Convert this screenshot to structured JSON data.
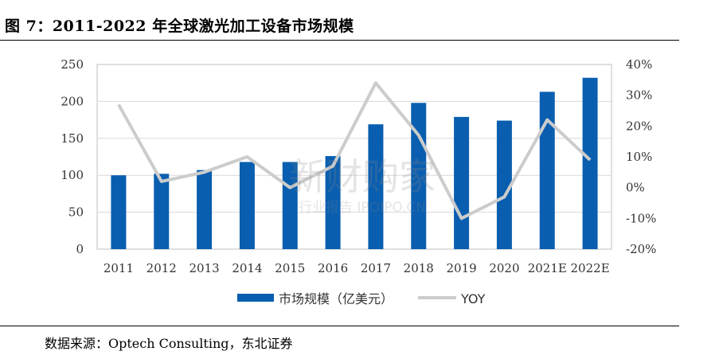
{
  "figure": {
    "title": "图 7：2011-2022 年全球激光加工设备市场规模",
    "source": "数据来源：Optech Consulting，东北证券"
  },
  "legend": {
    "bar_label": "市场规模（亿美元）",
    "line_label": "YOY"
  },
  "watermark": {
    "main": "新财购家",
    "sub": "行业报告 IPOIPO.CN"
  },
  "colors": {
    "bar": "#0a5eaf",
    "line": "#cccccc",
    "grid": "#d9d9d9",
    "axis": "#bfbfbf",
    "text": "#333333"
  },
  "chart_data": {
    "type": "bar",
    "categories": [
      "2011",
      "2012",
      "2013",
      "2014",
      "2015",
      "2016",
      "2017",
      "2018",
      "2019",
      "2020",
      "2021E",
      "2022E"
    ],
    "series": [
      {
        "name": "市场规模（亿美元）",
        "type": "bar",
        "axis": "left",
        "values": [
          100,
          102,
          107,
          118,
          118,
          126,
          169,
          198,
          179,
          174,
          213,
          232
        ]
      },
      {
        "name": "YOY",
        "type": "line",
        "axis": "right",
        "values": [
          0.27,
          0.02,
          0.05,
          0.1,
          0.0,
          0.07,
          0.34,
          0.17,
          -0.1,
          -0.03,
          0.22,
          0.09
        ]
      }
    ],
    "ylim_left": [
      0,
      250
    ],
    "yticks_left": [
      "0",
      "50",
      "100",
      "150",
      "200",
      "250"
    ],
    "ylim_right": [
      -0.2,
      0.4
    ],
    "yticks_right": [
      "-20%",
      "-10%",
      "0%",
      "10%",
      "20%",
      "30%",
      "40%"
    ],
    "grid": true,
    "legend_position": "bottom"
  }
}
